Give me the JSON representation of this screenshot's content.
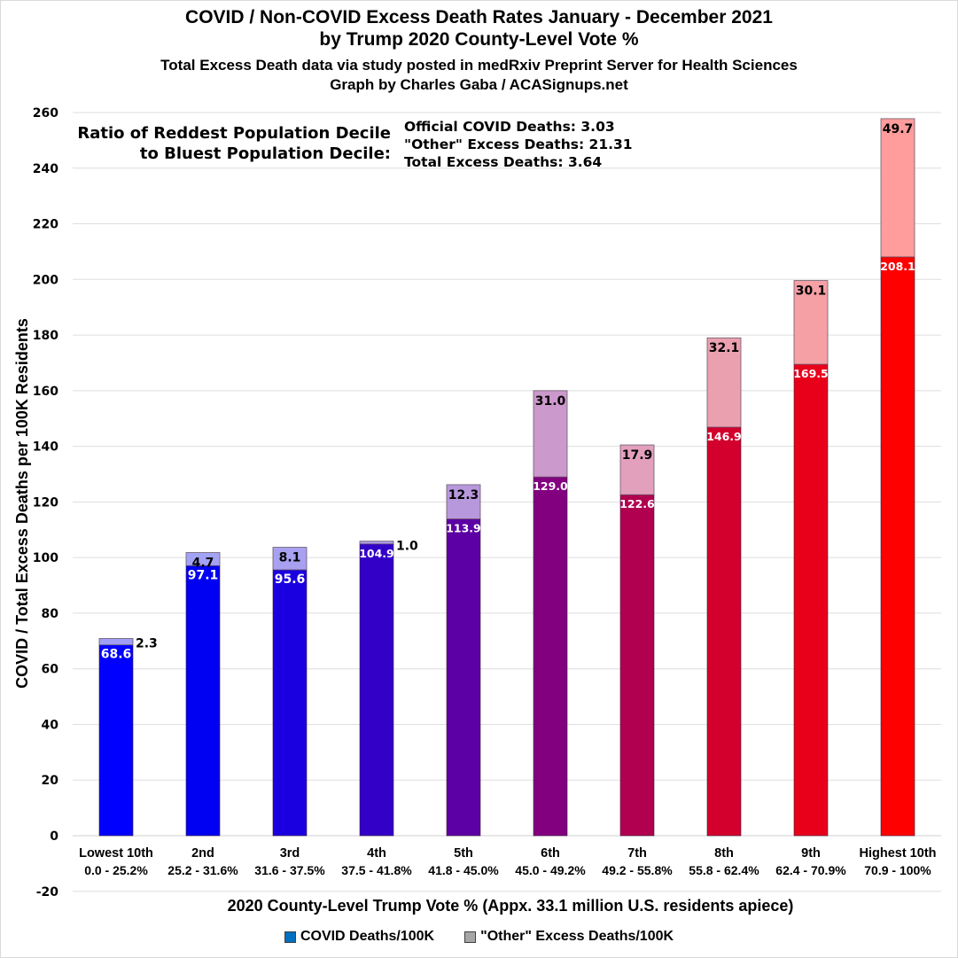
{
  "chart_data": {
    "type": "bar",
    "stacked": true,
    "title": "COVID / Non-COVID Excess Death Rates January - December 2021",
    "subtitle": "by Trump 2020 County-Level Vote %",
    "subtitle2": "Total Excess Death data via study posted in medRxiv Preprint Server for Health Sciences",
    "credit": "Graph by Charles Gaba / ACASignups.net",
    "xlabel": "2020 County-Level Trump Vote % (Appx. 33.1 million U.S. residents apiece)",
    "ylabel": "COVID / Total Excess Deaths per 100K Residents",
    "ylim": [
      -20,
      260
    ],
    "yticks": [
      -20,
      0,
      20,
      40,
      60,
      80,
      100,
      120,
      140,
      160,
      180,
      200,
      220,
      240,
      260
    ],
    "grid": true,
    "categories": [
      "Lowest 10th",
      "2nd",
      "3rd",
      "4th",
      "5th",
      "6th",
      "7th",
      "8th",
      "9th",
      "Highest 10th"
    ],
    "category_ranges": [
      "0.0 - 25.2%",
      "25.2 - 31.6%",
      "31.6 - 37.5%",
      "37.5 - 41.8%",
      "41.8 - 45.0%",
      "45.0 - 49.2%",
      "49.2 - 55.8%",
      "55.8 - 62.4%",
      "62.4 - 70.9%",
      "70.9 - 100%"
    ],
    "series": [
      {
        "name": "COVID Deaths/100K",
        "values": [
          68.6,
          97.1,
          95.6,
          104.9,
          113.9,
          129.0,
          122.6,
          146.9,
          169.5,
          208.1
        ],
        "labels": [
          "68.6",
          "97.1",
          "95.6",
          "104.9",
          "113.9",
          "129.0",
          "122.6",
          "146.9",
          "169.5",
          "208.1"
        ],
        "colors": [
          "#0000ff",
          "#0000f2",
          "#1a00e0",
          "#3300c8",
          "#5c00a3",
          "#820080",
          "#b0004f",
          "#d3002d",
          "#e8001a",
          "#ff0000"
        ],
        "legend_color": "#0070c0"
      },
      {
        "name": "\"Other\" Excess Deaths/100K",
        "values": [
          2.3,
          4.7,
          8.1,
          1.0,
          12.3,
          31.0,
          17.9,
          32.1,
          30.1,
          49.7
        ],
        "labels": [
          "2.3",
          "4.7",
          "8.1",
          "1.0",
          "12.3",
          "31.0",
          "17.9",
          "32.1",
          "30.1",
          "49.7"
        ],
        "colors": [
          "#9f9ff7",
          "#a3a3f5",
          "#a8a0f0",
          "#ab98ea",
          "#b898dc",
          "#cc99cc",
          "#e2a0bc",
          "#eba0b0",
          "#f5a0a5",
          "#ff9c9c"
        ],
        "legend_color": "#a6a6a6"
      }
    ],
    "legend_position": "bottom"
  },
  "annotation": {
    "left_lines": [
      "Ratio of Reddest Population Decile",
      "to Bluest Population Decile:"
    ],
    "right_lines": [
      "Official COVID Deaths: 3.03",
      "\"Other\" Excess Deaths: 21.31",
      "Total Excess Deaths: 3.64"
    ]
  }
}
